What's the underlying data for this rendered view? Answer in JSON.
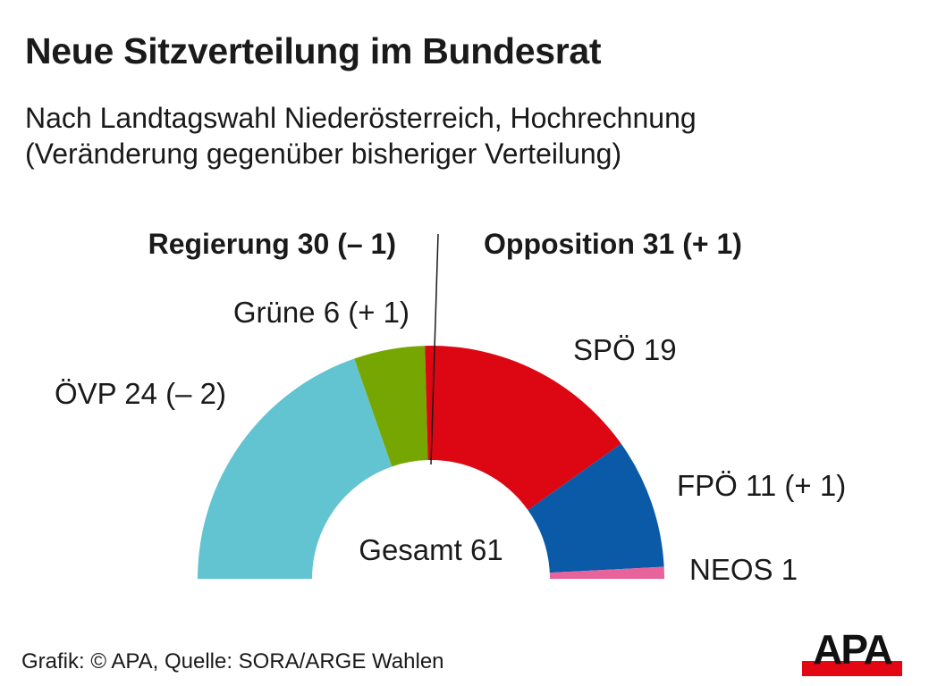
{
  "title": "Neue Sitzverteilung im Bundesrat",
  "subtitle_line1": "Nach Landtagswahl Niederösterreich, Hochrechnung",
  "subtitle_line2": "(Veränderung gegenüber bisheriger Verteilung)",
  "footer": "Grafik: © APA, Quelle: SORA/ARGE Wahlen",
  "logo_text": "APA",
  "chart_data": {
    "type": "pie",
    "variant": "half-donut",
    "total": 61,
    "total_label": "Gesamt 61",
    "groups": [
      {
        "label": "Regierung 30 (– 1)",
        "seats": 30
      },
      {
        "label": "Opposition 31 (+ 1)",
        "seats": 31
      }
    ],
    "segments": [
      {
        "party": "ÖVP",
        "seats": 24,
        "change": -2,
        "label": "ÖVP 24 (– 2)",
        "color": "#62c4d1"
      },
      {
        "party": "Grüne",
        "seats": 6,
        "change": 1,
        "label": "Grüne 6 (+ 1)",
        "color": "#76a602"
      },
      {
        "party": "SPÖ",
        "seats": 19,
        "change": 0,
        "label": "SPÖ 19",
        "color": "#dd0613"
      },
      {
        "party": "FPÖ",
        "seats": 11,
        "change": 1,
        "label": "FPÖ 11 (+ 1)",
        "color": "#0b5aa8"
      },
      {
        "party": "NEOS",
        "seats": 1,
        "change": 0,
        "label": "NEOS 1",
        "color": "#e8629c"
      }
    ]
  }
}
